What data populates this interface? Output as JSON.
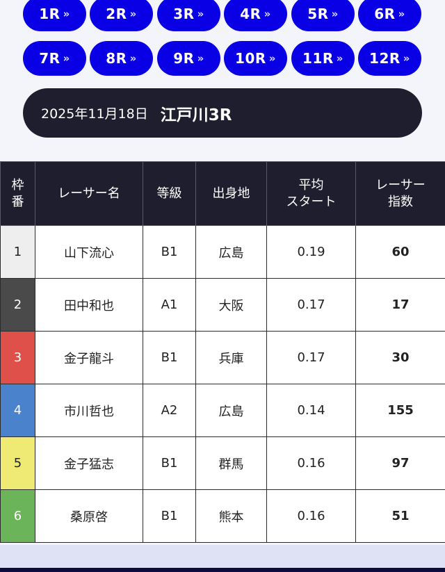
{
  "race_buttons": [
    {
      "label": "1R"
    },
    {
      "label": "2R"
    },
    {
      "label": "3R"
    },
    {
      "label": "4R"
    },
    {
      "label": "5R"
    },
    {
      "label": "6R"
    },
    {
      "label": "7R"
    },
    {
      "label": "8R"
    },
    {
      "label": "9R"
    },
    {
      "label": "10R"
    },
    {
      "label": "11R"
    },
    {
      "label": "12R"
    }
  ],
  "chevron": "»",
  "title": {
    "date": "2025年11月18日",
    "venue_race": "江戸川3R"
  },
  "table": {
    "headers": {
      "frame": "枠番",
      "name": "レーサー名",
      "grade": "等級",
      "origin": "出身地",
      "avg_start": "平均\nスタート",
      "index": "レーサー\n指数"
    },
    "rows": [
      {
        "frame": "1",
        "frame_color": "#eeeeee",
        "frame_text_color": "#222222",
        "name": "山下流心",
        "grade": "B1",
        "origin": "広島",
        "avg_start": "0.19",
        "index": "60"
      },
      {
        "frame": "2",
        "frame_color": "#4a4a4a",
        "frame_text_color": "#ffffff",
        "name": "田中和也",
        "grade": "A1",
        "origin": "大阪",
        "avg_start": "0.17",
        "index": "17"
      },
      {
        "frame": "3",
        "frame_color": "#e0504a",
        "frame_text_color": "#ffffff",
        "name": "金子龍斗",
        "grade": "B1",
        "origin": "兵庫",
        "avg_start": "0.17",
        "index": "30"
      },
      {
        "frame": "4",
        "frame_color": "#4a82cc",
        "frame_text_color": "#ffffff",
        "name": "市川哲也",
        "grade": "A2",
        "origin": "広島",
        "avg_start": "0.14",
        "index": "155"
      },
      {
        "frame": "5",
        "frame_color": "#eeea74",
        "frame_text_color": "#222222",
        "name": "金子猛志",
        "grade": "B1",
        "origin": "群馬",
        "avg_start": "0.16",
        "index": "97"
      },
      {
        "frame": "6",
        "frame_color": "#6cb45a",
        "frame_text_color": "#ffffff",
        "name": "桑原啓",
        "grade": "B1",
        "origin": "熊本",
        "avg_start": "0.16",
        "index": "51"
      }
    ]
  }
}
